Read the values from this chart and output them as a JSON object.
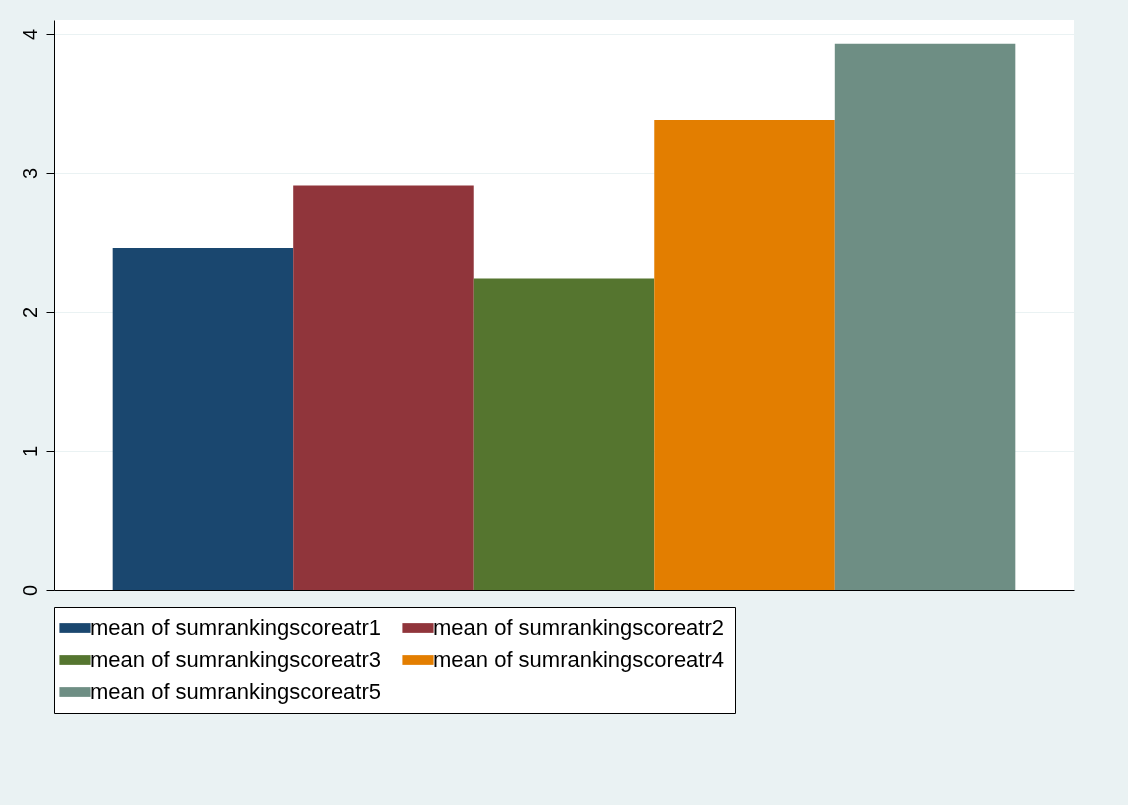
{
  "chart_data": {
    "type": "bar",
    "categories": [
      null
    ],
    "series": [
      {
        "name": "mean of sumrankingscoreatr1",
        "color": "#1a476f",
        "values": [
          2.46
        ]
      },
      {
        "name": "mean of sumrankingscoreatr2",
        "color": "#90353b",
        "values": [
          2.91
        ]
      },
      {
        "name": "mean of sumrankingscoreatr3",
        "color": "#55752f",
        "values": [
          2.24
        ]
      },
      {
        "name": "mean of sumrankingscoreatr4",
        "color": "#e37e00",
        "values": [
          3.38
        ]
      },
      {
        "name": "mean of sumrankingscoreatr5",
        "color": "#6e8e84",
        "values": [
          3.93
        ]
      }
    ],
    "ylim": [
      0,
      4.1
    ],
    "yticks": [
      0,
      1,
      2,
      3,
      4
    ],
    "grid": "y",
    "legend": "bottom"
  }
}
